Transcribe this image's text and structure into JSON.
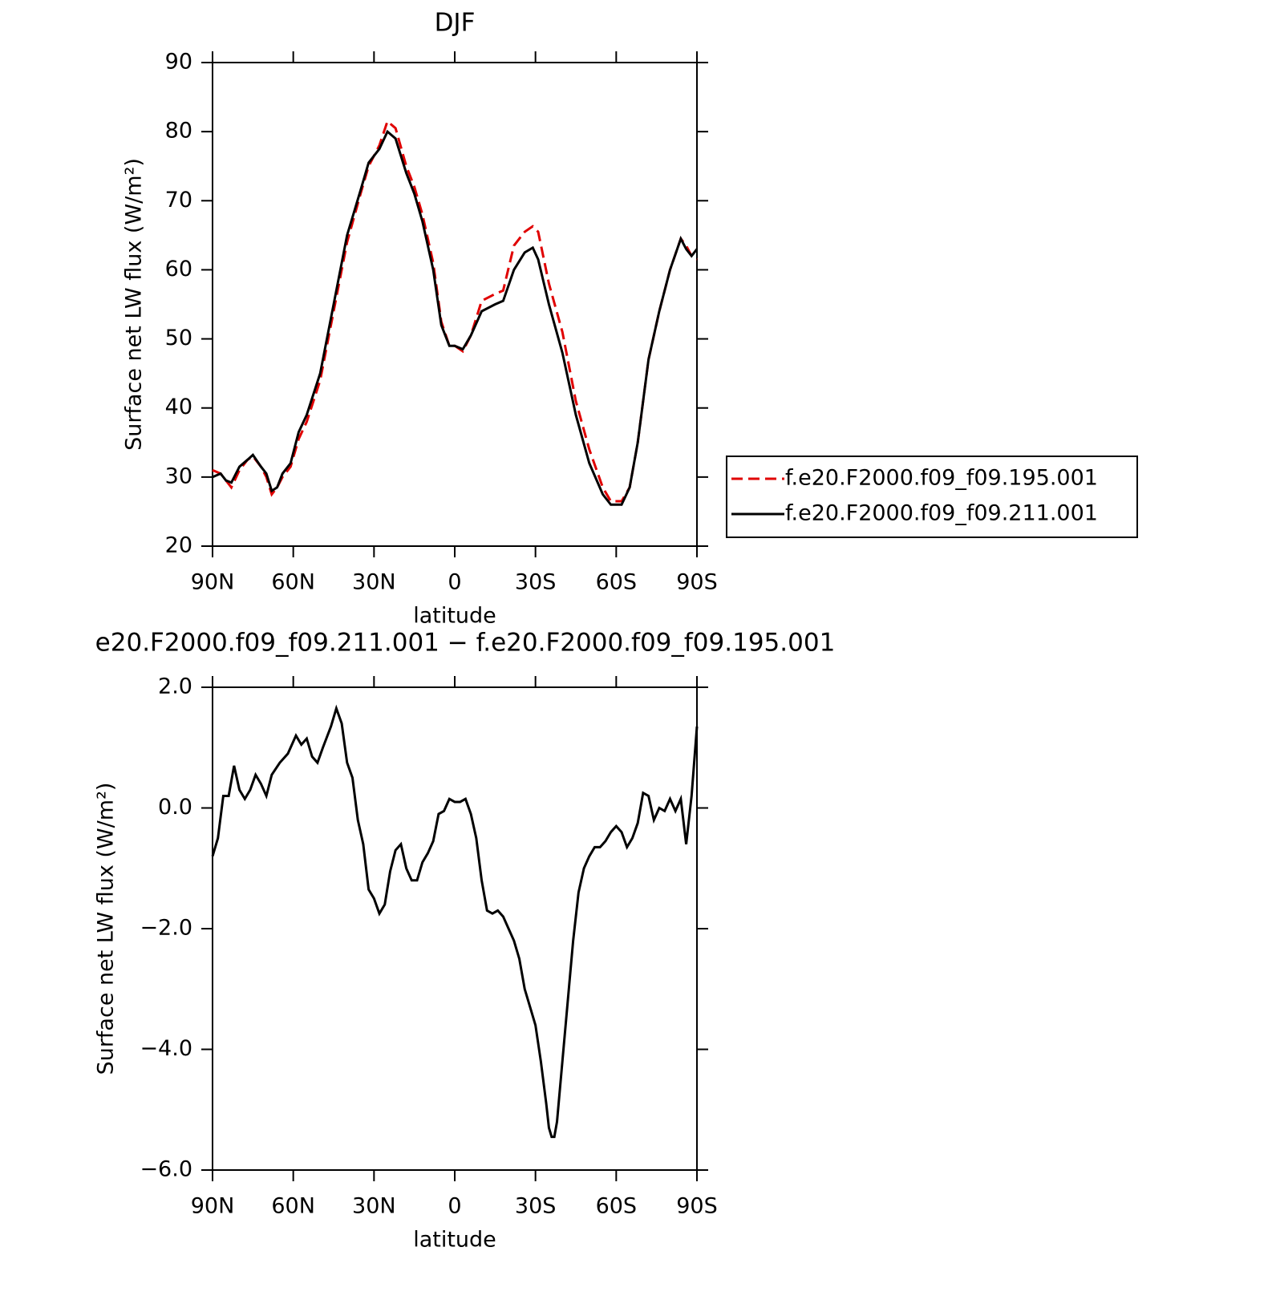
{
  "charts": [
    {
      "type": "line",
      "title": "DJF",
      "xlabel": "latitude",
      "ylabel": "Surface net LW flux (W/m²)",
      "x": [
        90,
        87,
        85,
        83,
        80,
        77,
        75,
        72,
        70,
        68,
        66,
        64,
        61,
        58,
        55,
        50,
        45,
        40,
        35,
        32,
        28,
        25,
        22,
        18,
        15,
        12,
        8,
        5,
        2,
        0,
        -3,
        -6,
        -10,
        -15,
        -18,
        -22,
        -26,
        -29,
        -31,
        -35,
        -40,
        -45,
        -50,
        -55,
        -58,
        -62,
        -65,
        -68,
        -72,
        -76,
        -80,
        -84,
        -86,
        -88,
        -90
      ],
      "series": [
        {
          "name": "f.e20.F2000.f09_f09.195.001",
          "color": "#e00000",
          "line_style": "dashed",
          "values": [
            31,
            30.5,
            29.5,
            28.5,
            31,
            32.5,
            33,
            31.5,
            30,
            27.5,
            28.5,
            30,
            31.5,
            35.5,
            38,
            44,
            54,
            64,
            71,
            75,
            78,
            81.5,
            80.5,
            75,
            72,
            68,
            61,
            52.5,
            49,
            49,
            48.2,
            50.5,
            55.5,
            56.5,
            57,
            63.5,
            65.5,
            66.3,
            65.5,
            58,
            51,
            41,
            34,
            28.5,
            26.5,
            26.5,
            28.5,
            35,
            47,
            54,
            60,
            64.5,
            63.5,
            62,
            61.5
          ]
        },
        {
          "name": "f.e20.F2000.f09_f09.211.001",
          "color": "#000000",
          "line_style": "solid",
          "values": [
            30,
            30.5,
            29.5,
            29.2,
            31.5,
            32.5,
            33.2,
            31.5,
            30.5,
            28,
            28.5,
            30.5,
            32,
            36.5,
            39,
            45,
            55,
            65,
            71.5,
            75.5,
            77.5,
            80,
            79,
            74,
            71,
            67,
            60,
            52,
            49,
            49,
            48.5,
            50.5,
            54,
            55,
            55.5,
            60,
            62.5,
            63.2,
            61.5,
            55,
            48,
            39,
            32,
            27.5,
            26,
            26,
            28.5,
            35,
            47,
            54,
            60,
            64.5,
            63,
            62,
            63
          ]
        }
      ],
      "xlim": [
        90,
        -90
      ],
      "xticks": [
        {
          "value": 90,
          "label": "90N"
        },
        {
          "value": 60,
          "label": "60N"
        },
        {
          "value": 30,
          "label": "30N"
        },
        0,
        {
          "value": -30,
          "label": "30S"
        },
        {
          "value": -60,
          "label": "60S"
        },
        {
          "value": -90,
          "label": "90S"
        }
      ],
      "ylim": [
        20,
        90
      ],
      "yticks": [
        20,
        30,
        40,
        50,
        60,
        70,
        80,
        90
      ],
      "legend": "right"
    },
    {
      "type": "line",
      "title": "e20.F2000.f09_f09.211.001 − f.e20.F2000.f09_f09.195.001",
      "xlabel": "latitude",
      "ylabel": "Surface net LW flux (W/m²)",
      "x": [
        90,
        88,
        86,
        84,
        82,
        80,
        78,
        76,
        74,
        72,
        70,
        68,
        65,
        62,
        59,
        57,
        55,
        53,
        51,
        49,
        46,
        44,
        42,
        40,
        38,
        36,
        34,
        32,
        30,
        28,
        26,
        24,
        22,
        20,
        18,
        16,
        14,
        12,
        10,
        8,
        6,
        4,
        2,
        0,
        -2,
        -4,
        -6,
        -8,
        -10,
        -12,
        -14,
        -16,
        -18,
        -20,
        -22,
        -24,
        -26,
        -28,
        -30,
        -32,
        -34,
        -35,
        -36,
        -37,
        -38,
        -40,
        -42,
        -44,
        -46,
        -48,
        -50,
        -52,
        -54,
        -56,
        -58,
        -60,
        -62,
        -64,
        -66,
        -68,
        -70,
        -72,
        -74,
        -76,
        -78,
        -80,
        -82,
        -84,
        -86,
        -88,
        -90
      ],
      "series": [
        {
          "color": "#000000",
          "line_style": "solid",
          "values": [
            -0.8,
            -0.5,
            0.2,
            0.2,
            0.7,
            0.3,
            0.15,
            0.3,
            0.55,
            0.4,
            0.2,
            0.55,
            0.75,
            0.9,
            1.2,
            1.05,
            1.15,
            0.85,
            0.75,
            1.0,
            1.35,
            1.65,
            1.4,
            0.75,
            0.5,
            -0.2,
            -0.6,
            -1.35,
            -1.5,
            -1.75,
            -1.6,
            -1.05,
            -0.7,
            -0.6,
            -1.0,
            -1.2,
            -1.2,
            -0.9,
            -0.75,
            -0.55,
            -0.1,
            -0.05,
            0.15,
            0.1,
            0.1,
            0.15,
            -0.1,
            -0.5,
            -1.2,
            -1.7,
            -1.75,
            -1.7,
            -1.8,
            -2.0,
            -2.2,
            -2.5,
            -3.0,
            -3.3,
            -3.6,
            -4.2,
            -4.9,
            -5.3,
            -5.45,
            -5.45,
            -5.2,
            -4.2,
            -3.2,
            -2.2,
            -1.4,
            -1.0,
            -0.8,
            -0.65,
            -0.65,
            -0.55,
            -0.4,
            -0.3,
            -0.4,
            -0.65,
            -0.5,
            -0.25,
            0.25,
            0.2,
            -0.2,
            0.0,
            -0.05,
            0.15,
            -0.05,
            0.15,
            -0.6,
            0.2,
            1.35
          ]
        }
      ],
      "xlim": [
        90,
        -90
      ],
      "xticks": [
        {
          "value": 90,
          "label": "90N"
        },
        {
          "value": 60,
          "label": "60N"
        },
        {
          "value": 30,
          "label": "30N"
        },
        0,
        {
          "value": -30,
          "label": "30S"
        },
        {
          "value": -60,
          "label": "60S"
        },
        {
          "value": -90,
          "label": "90S"
        }
      ],
      "ylim": [
        -6,
        2
      ],
      "yticks": [
        {
          "value": -6,
          "label": "−6.0"
        },
        {
          "value": -4,
          "label": "−4.0"
        },
        {
          "value": -2,
          "label": "−2.0"
        },
        {
          "value": 0,
          "label": "0.0"
        },
        {
          "value": 2,
          "label": "2.0"
        }
      ]
    }
  ]
}
